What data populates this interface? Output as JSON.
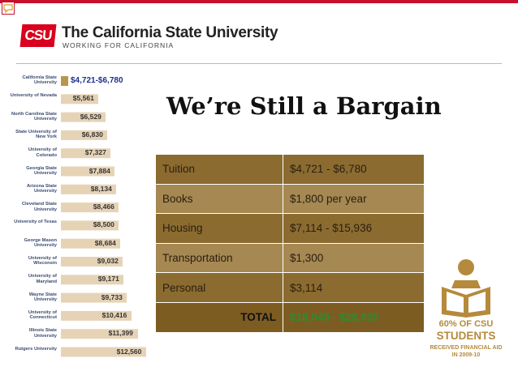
{
  "header": {
    "logo_mark": "CSU",
    "logo_name": "The California State University",
    "logo_tagline": "WORKING FOR CALIFORNIA"
  },
  "title": "We’re Still a Bargain",
  "costs": [
    {
      "label": "Tuition",
      "value": "$4,721 - $6,780"
    },
    {
      "label": "Books",
      "value": "$1,800 per year"
    },
    {
      "label": "Housing",
      "value": "$7,114 - $15,936"
    },
    {
      "label": "Transportation",
      "value": "$1,300"
    },
    {
      "label": "Personal",
      "value": "$3,114"
    }
  ],
  "total": {
    "label": "TOTAL",
    "value": "$18,049 - $28,930"
  },
  "aid_badge": {
    "percent": "60% OF CSU",
    "students": "STUDENTS",
    "line1": "RECEIVED FINANCIAL AID",
    "line2": "IN 2009-10",
    "color": "#b58a3c"
  },
  "colors": {
    "accent": "#c8102e",
    "table_dark": "#8b6b30",
    "table_light": "#a58852",
    "total_value": "#2e8b2e",
    "chart_highlight": "#b8964e",
    "chart_bar": "#e6d3b6"
  },
  "chart_data": {
    "type": "bar",
    "orientation": "horizontal",
    "categories": [
      "California State University",
      "University of Nevada",
      "North Carolina State University",
      "State University of New York",
      "University of Colorado",
      "Georgia State University",
      "Arizona State University",
      "Cleveland State University",
      "University of Texas",
      "George Mason University",
      "University of Wisconsin",
      "University of Maryland",
      "Wayne State University",
      "University of Connecticut",
      "Illinois State University",
      "Rutgers University"
    ],
    "labels": [
      "$4,721-$6,780",
      "$5,561",
      "$6,529",
      "$6,830",
      "$7,327",
      "$7,884",
      "$8,134",
      "$8,466",
      "$8,500",
      "$8,684",
      "$9,032",
      "$9,171",
      "$9,733",
      "$10,416",
      "$11,399",
      "$12,560"
    ],
    "values": [
      6780,
      5561,
      6529,
      6830,
      7327,
      7884,
      8134,
      8466,
      8500,
      8684,
      9032,
      9171,
      9733,
      10416,
      11399,
      12560
    ],
    "highlight_index": 0
  }
}
